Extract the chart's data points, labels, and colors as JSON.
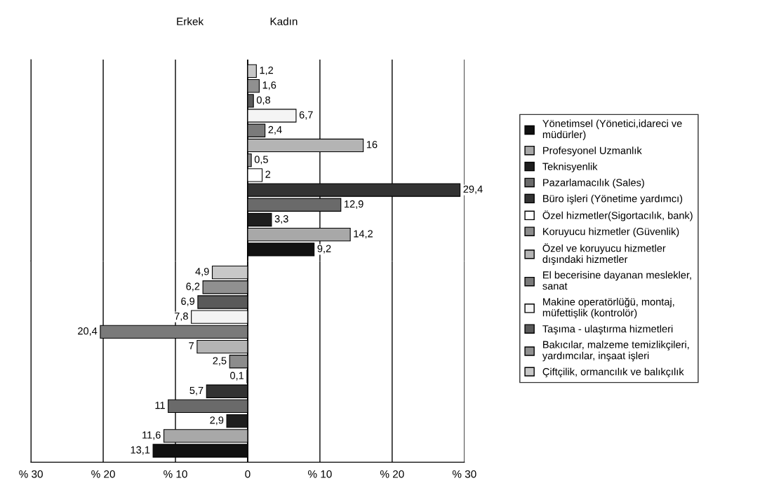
{
  "chart_data": [
    {
      "type": "bar",
      "orientation": "horizontal",
      "annotations": [
        "Erkek",
        "Kadın"
      ],
      "categories": [
        null
      ],
      "series": [
        {
          "name": "Çiftçilik, ormancılık ve balıkçılık",
          "color": "#c8c8c8",
          "values": [
            1.2
          ],
          "value_labels": [
            "1,2"
          ]
        },
        {
          "name": "Bakıcılar, malzeme temizlikçileri,\nyardımcılar, inşaat işleri",
          "color": "#909090",
          "values": [
            1.6
          ],
          "value_labels": [
            "1,6"
          ]
        },
        {
          "name": "Taşıma - ulaştırma hizmetleri",
          "color": "#5a5a5a",
          "values": [
            0.8
          ],
          "value_labels": [
            "0,8"
          ]
        },
        {
          "name": "Makine operatörlüğü, montaj,\nmüfettişlik (kontrolör)",
          "color": "#f4f4f4",
          "values": [
            6.7
          ],
          "value_labels": [
            "6,7"
          ]
        },
        {
          "name": "El becerisine dayanan meslekler,\nsanat",
          "color": "#7a7a7a",
          "values": [
            2.4
          ],
          "value_labels": [
            "2,4"
          ]
        },
        {
          "name": "Özel ve koruyucu hizmetler\ndışındaki hizmetler",
          "color": "#b4b4b4",
          "values": [
            16
          ],
          "value_labels": [
            "16"
          ]
        },
        {
          "name": "Koruyucu hizmetler (Güvenlik)",
          "color": "#8c8c8c",
          "values": [
            0.5
          ],
          "value_labels": [
            "0,5"
          ]
        },
        {
          "name": "Özel hizmetler(Sigortacılık, bank)",
          "color": "#ffffff",
          "values": [
            2
          ],
          "value_labels": [
            "2"
          ]
        },
        {
          "name": "Büro işleri (Yönetime yardımcı)",
          "color": "#333333",
          "values": [
            29.4
          ],
          "value_labels": [
            "29,4"
          ]
        },
        {
          "name": "Pazarlamacılık (Sales)",
          "color": "#6a6a6a",
          "values": [
            12.9
          ],
          "value_labels": [
            "12,9"
          ]
        },
        {
          "name": "Teknisyenlik",
          "color": "#1e1e1e",
          "values": [
            3.3
          ],
          "value_labels": [
            "3,3"
          ]
        },
        {
          "name": "Profesyonel Uzmanlık",
          "color": "#a8a8a8",
          "values": [
            14.2
          ],
          "value_labels": [
            "14,2"
          ]
        },
        {
          "name": "Yönetimsel (Yönetici,idareci ve\nmüdürler)",
          "color": "#111111",
          "values": [
            9.2
          ],
          "value_labels": [
            "9,2"
          ]
        }
      ],
      "xlim": [
        -30,
        30
      ],
      "xticks": [
        -30,
        -20,
        -10,
        0,
        10,
        20,
        30
      ],
      "tick_labels": false,
      "grid": "x",
      "legend": "right"
    },
    {
      "type": "bar",
      "orientation": "horizontal",
      "categories": [
        null
      ],
      "series": [
        {
          "color": "#c8c8c8",
          "values": [
            4.9
          ],
          "value_labels": [
            "4,9"
          ]
        },
        {
          "color": "#909090",
          "values": [
            6.2
          ],
          "value_labels": [
            "6,2"
          ]
        },
        {
          "color": "#5a5a5a",
          "values": [
            6.9
          ],
          "value_labels": [
            "6,9"
          ]
        },
        {
          "color": "#f4f4f4",
          "values": [
            7.8
          ],
          "value_labels": [
            "7,8"
          ]
        },
        {
          "color": "#7a7a7a",
          "values": [
            20.4
          ],
          "value_labels": [
            "20,4"
          ]
        },
        {
          "color": "#b4b4b4",
          "values": [
            7
          ],
          "value_labels": [
            "7"
          ]
        },
        {
          "color": "#8c8c8c",
          "values": [
            2.5
          ],
          "value_labels": [
            "2,5"
          ]
        },
        {
          "color": "#ffffff",
          "values": [
            0.1
          ],
          "value_labels": [
            "0,1"
          ]
        },
        {
          "color": "#333333",
          "values": [
            5.7
          ],
          "value_labels": [
            "5,7"
          ]
        },
        {
          "color": "#6a6a6a",
          "values": [
            11
          ],
          "value_labels": [
            "11"
          ]
        },
        {
          "color": "#1e1e1e",
          "values": [
            2.9
          ],
          "value_labels": [
            "2,9"
          ]
        },
        {
          "color": "#a8a8a8",
          "values": [
            11.6
          ],
          "value_labels": [
            "11,6"
          ]
        },
        {
          "color": "#111111",
          "values": [
            13.1
          ],
          "value_labels": [
            "13,1"
          ]
        }
      ],
      "xlim": [
        30,
        -30
      ],
      "xticks": [
        {
          "value": 30,
          "label": "% 30"
        },
        {
          "value": 20,
          "label": "% 20"
        },
        {
          "value": 10,
          "label": "% 10"
        },
        0,
        {
          "value": -10,
          "label": "% 10"
        },
        {
          "value": -20,
          "label": "% 20"
        },
        {
          "value": -30,
          "label": "% 30"
        }
      ],
      "grid": "x"
    }
  ]
}
